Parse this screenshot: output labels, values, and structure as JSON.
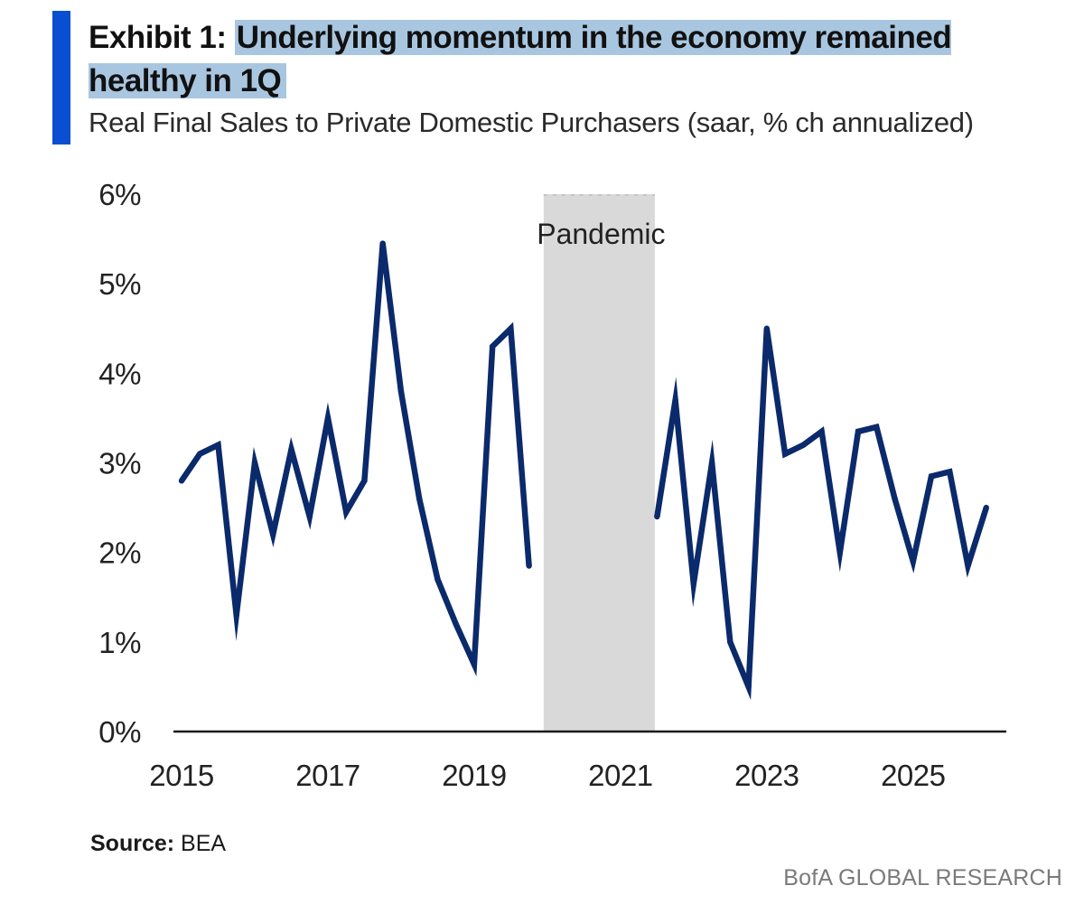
{
  "header": {
    "exhibit_label": "Exhibit 1:",
    "title": "Underlying momentum in the economy remained healthy in 1Q",
    "subtitle": "Real Final Sales to Private Domestic Purchasers (saar, % ch annualized)"
  },
  "chart_data": {
    "type": "line",
    "title": "Underlying momentum in the economy remained healthy in 1Q",
    "subtitle": "Real Final Sales to Private Domestic Purchasers (saar, % ch annualized)",
    "xlabel": "",
    "ylabel": "",
    "xlim": [
      2015,
      2026.25
    ],
    "ylim": [
      0,
      6
    ],
    "x_ticks": [
      2015,
      2017,
      2019,
      2021,
      2023,
      2025
    ],
    "x_tick_labels": [
      "2015",
      "2017",
      "2019",
      "2021",
      "2023",
      "2025"
    ],
    "y_ticks": [
      0,
      1,
      2,
      3,
      4,
      5,
      6
    ],
    "y_tick_labels": [
      "0%",
      "1%",
      "2%",
      "3%",
      "4%",
      "5%",
      "6%"
    ],
    "grid": false,
    "line_color": "#0b2a6b",
    "shade_color": "#d9d9d9",
    "series": [
      {
        "name": "",
        "segments": [
          {
            "x": [
              2015.0,
              2015.25,
              2015.5,
              2015.75,
              2016.0,
              2016.25,
              2016.5,
              2016.75,
              2017.0,
              2017.25,
              2017.5,
              2017.75,
              2018.0,
              2018.25,
              2018.5,
              2018.75,
              2019.0,
              2019.25,
              2019.5,
              2019.75
            ],
            "y": [
              2.8,
              3.1,
              3.2,
              1.3,
              3.0,
              2.2,
              3.15,
              2.4,
              3.5,
              2.45,
              2.8,
              5.45,
              3.8,
              2.6,
              1.7,
              1.2,
              0.75,
              4.3,
              4.5,
              1.85
            ]
          },
          {
            "x": [
              2021.5,
              2021.75,
              2022.0,
              2022.25,
              2022.5,
              2022.75,
              2023.0,
              2023.25,
              2023.5,
              2023.75,
              2024.0,
              2024.25,
              2024.5,
              2024.75,
              2025.0,
              2025.25,
              2025.5,
              2025.75,
              2026.0
            ],
            "y": [
              2.4,
              3.7,
              1.65,
              3.0,
              1.0,
              0.5,
              4.5,
              3.1,
              3.2,
              3.35,
              2.0,
              3.35,
              3.4,
              2.6,
              1.9,
              2.85,
              2.9,
              1.85,
              2.5
            ]
          }
        ]
      }
    ],
    "shaded_regions": [
      {
        "label": "Pandemic",
        "x_start": 2019.95,
        "x_end": 2021.47
      }
    ]
  },
  "footer": {
    "source_label": "Source:",
    "source_value": "BEA",
    "brand": "BofA GLOBAL RESEARCH"
  }
}
